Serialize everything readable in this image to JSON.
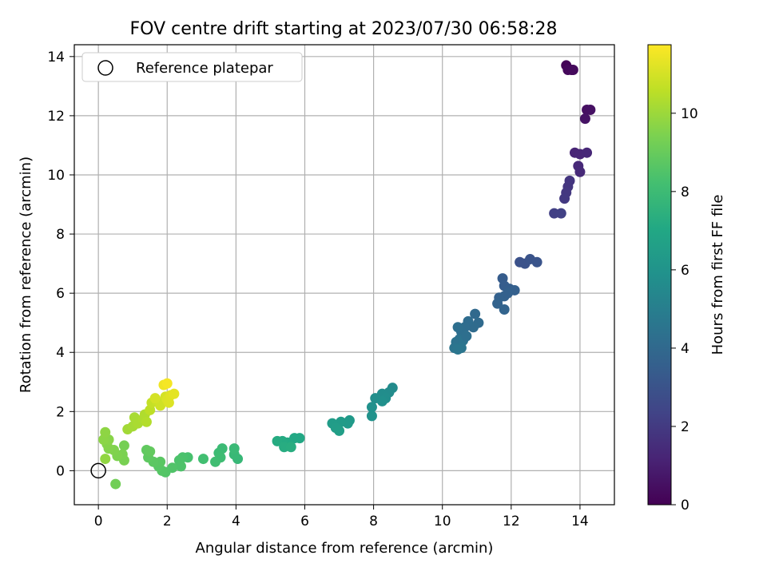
{
  "chart_data": {
    "type": "scatter",
    "title": "FOV centre drift starting at 2023/07/30 06:58:28",
    "xlabel": "Angular distance from reference (arcmin)",
    "ylabel": "Rotation from reference (arcmin)",
    "xlim": [
      -0.7,
      15.0
    ],
    "ylim": [
      -1.15,
      14.4
    ],
    "xticks": [
      0,
      2,
      4,
      6,
      8,
      10,
      12,
      14
    ],
    "yticks": [
      0,
      2,
      4,
      6,
      8,
      10,
      12,
      14
    ],
    "grid": true,
    "legend": {
      "position": "top-left",
      "entries": [
        "Reference platepar"
      ]
    },
    "reference_point": {
      "x": 0,
      "y": 0
    },
    "colorbar": {
      "label": "Hours from first FF file",
      "colormap": "viridis",
      "range": [
        0,
        11.75
      ],
      "ticks": [
        0,
        2,
        4,
        6,
        8,
        10
      ]
    },
    "points": [
      {
        "x": 13.6,
        "y": 13.7,
        "c": 0.1
      },
      {
        "x": 13.75,
        "y": 13.55,
        "c": 0.2
      },
      {
        "x": 13.65,
        "y": 13.55,
        "c": 0.25
      },
      {
        "x": 13.8,
        "y": 13.55,
        "c": 0.3
      },
      {
        "x": 14.2,
        "y": 12.2,
        "c": 0.5
      },
      {
        "x": 14.3,
        "y": 12.2,
        "c": 0.55
      },
      {
        "x": 14.15,
        "y": 11.9,
        "c": 0.6
      },
      {
        "x": 13.85,
        "y": 10.75,
        "c": 1.2
      },
      {
        "x": 14.0,
        "y": 10.7,
        "c": 1.25
      },
      {
        "x": 14.2,
        "y": 10.75,
        "c": 1.3
      },
      {
        "x": 13.95,
        "y": 10.3,
        "c": 1.35
      },
      {
        "x": 14.0,
        "y": 10.1,
        "c": 1.4
      },
      {
        "x": 13.7,
        "y": 9.8,
        "c": 1.8
      },
      {
        "x": 13.65,
        "y": 9.6,
        "c": 1.85
      },
      {
        "x": 13.6,
        "y": 9.4,
        "c": 1.9
      },
      {
        "x": 13.55,
        "y": 9.2,
        "c": 1.95
      },
      {
        "x": 13.25,
        "y": 8.7,
        "c": 2.2
      },
      {
        "x": 13.45,
        "y": 8.7,
        "c": 2.25
      },
      {
        "x": 12.25,
        "y": 7.05,
        "c": 2.9
      },
      {
        "x": 12.4,
        "y": 7.0,
        "c": 2.95
      },
      {
        "x": 12.55,
        "y": 7.15,
        "c": 3.0
      },
      {
        "x": 12.75,
        "y": 7.05,
        "c": 3.05
      },
      {
        "x": 11.75,
        "y": 6.5,
        "c": 3.4
      },
      {
        "x": 11.8,
        "y": 6.25,
        "c": 3.45
      },
      {
        "x": 11.95,
        "y": 6.15,
        "c": 3.5
      },
      {
        "x": 12.1,
        "y": 6.1,
        "c": 3.55
      },
      {
        "x": 11.65,
        "y": 5.85,
        "c": 3.6
      },
      {
        "x": 11.8,
        "y": 5.9,
        "c": 3.65
      },
      {
        "x": 11.6,
        "y": 5.65,
        "c": 3.7
      },
      {
        "x": 11.8,
        "y": 5.45,
        "c": 3.75
      },
      {
        "x": 11.9,
        "y": 6.0,
        "c": 3.62
      },
      {
        "x": 10.95,
        "y": 5.3,
        "c": 4.0
      },
      {
        "x": 11.05,
        "y": 5.0,
        "c": 4.05
      },
      {
        "x": 10.9,
        "y": 4.85,
        "c": 4.1
      },
      {
        "x": 10.75,
        "y": 5.05,
        "c": 4.15
      },
      {
        "x": 10.65,
        "y": 4.85,
        "c": 4.2
      },
      {
        "x": 10.55,
        "y": 4.7,
        "c": 4.25
      },
      {
        "x": 10.45,
        "y": 4.85,
        "c": 4.3
      },
      {
        "x": 10.5,
        "y": 4.45,
        "c": 4.35
      },
      {
        "x": 10.4,
        "y": 4.35,
        "c": 4.4
      },
      {
        "x": 10.6,
        "y": 4.4,
        "c": 4.45
      },
      {
        "x": 10.35,
        "y": 4.15,
        "c": 4.5
      },
      {
        "x": 10.55,
        "y": 4.15,
        "c": 4.55
      },
      {
        "x": 10.45,
        "y": 4.1,
        "c": 4.6
      },
      {
        "x": 10.7,
        "y": 4.55,
        "c": 4.3
      },
      {
        "x": 8.55,
        "y": 2.8,
        "c": 5.6
      },
      {
        "x": 8.45,
        "y": 2.65,
        "c": 5.65
      },
      {
        "x": 8.25,
        "y": 2.6,
        "c": 5.7
      },
      {
        "x": 8.35,
        "y": 2.45,
        "c": 5.75
      },
      {
        "x": 8.05,
        "y": 2.45,
        "c": 5.8
      },
      {
        "x": 8.25,
        "y": 2.35,
        "c": 5.85
      },
      {
        "x": 7.95,
        "y": 2.15,
        "c": 5.9
      },
      {
        "x": 7.95,
        "y": 1.85,
        "c": 5.95
      },
      {
        "x": 7.3,
        "y": 1.7,
        "c": 6.3
      },
      {
        "x": 7.25,
        "y": 1.6,
        "c": 6.35
      },
      {
        "x": 7.05,
        "y": 1.65,
        "c": 6.4
      },
      {
        "x": 6.8,
        "y": 1.6,
        "c": 6.45
      },
      {
        "x": 6.9,
        "y": 1.45,
        "c": 6.5
      },
      {
        "x": 7.0,
        "y": 1.35,
        "c": 6.55
      },
      {
        "x": 5.85,
        "y": 1.1,
        "c": 7.0
      },
      {
        "x": 5.7,
        "y": 1.1,
        "c": 7.05
      },
      {
        "x": 5.5,
        "y": 0.95,
        "c": 7.1
      },
      {
        "x": 5.35,
        "y": 1.0,
        "c": 7.15
      },
      {
        "x": 5.2,
        "y": 1.0,
        "c": 7.2
      },
      {
        "x": 5.4,
        "y": 0.8,
        "c": 7.25
      },
      {
        "x": 5.6,
        "y": 0.8,
        "c": 7.3
      },
      {
        "x": 4.05,
        "y": 0.4,
        "c": 7.8
      },
      {
        "x": 3.95,
        "y": 0.55,
        "c": 7.85
      },
      {
        "x": 3.95,
        "y": 0.75,
        "c": 7.9
      },
      {
        "x": 3.6,
        "y": 0.75,
        "c": 7.95
      },
      {
        "x": 3.5,
        "y": 0.6,
        "c": 8.0
      },
      {
        "x": 3.55,
        "y": 0.45,
        "c": 8.05
      },
      {
        "x": 3.4,
        "y": 0.3,
        "c": 8.1
      },
      {
        "x": 3.05,
        "y": 0.4,
        "c": 8.15
      },
      {
        "x": 2.6,
        "y": 0.45,
        "c": 8.3
      },
      {
        "x": 2.45,
        "y": 0.45,
        "c": 8.35
      },
      {
        "x": 2.35,
        "y": 0.35,
        "c": 8.4
      },
      {
        "x": 2.4,
        "y": 0.15,
        "c": 8.45
      },
      {
        "x": 2.15,
        "y": 0.1,
        "c": 8.5
      },
      {
        "x": 1.95,
        "y": -0.05,
        "c": 8.55
      },
      {
        "x": 1.85,
        "y": 0.0,
        "c": 8.6
      },
      {
        "x": 1.75,
        "y": 0.15,
        "c": 8.65
      },
      {
        "x": 1.8,
        "y": 0.3,
        "c": 8.7
      },
      {
        "x": 1.6,
        "y": 0.3,
        "c": 8.75
      },
      {
        "x": 1.45,
        "y": 0.45,
        "c": 8.8
      },
      {
        "x": 1.4,
        "y": 0.7,
        "c": 8.85
      },
      {
        "x": 1.5,
        "y": 0.65,
        "c": 8.9
      },
      {
        "x": 0.5,
        "y": -0.45,
        "c": 9.2
      },
      {
        "x": 0.75,
        "y": 0.85,
        "c": 9.3
      },
      {
        "x": 0.75,
        "y": 0.35,
        "c": 9.35
      },
      {
        "x": 0.7,
        "y": 0.55,
        "c": 9.4
      },
      {
        "x": 0.55,
        "y": 0.5,
        "c": 9.45
      },
      {
        "x": 0.45,
        "y": 0.7,
        "c": 9.5
      },
      {
        "x": 0.3,
        "y": 0.75,
        "c": 9.55
      },
      {
        "x": 0.25,
        "y": 0.9,
        "c": 9.6
      },
      {
        "x": 0.3,
        "y": 1.05,
        "c": 9.65
      },
      {
        "x": 0.15,
        "y": 1.05,
        "c": 9.7
      },
      {
        "x": 0.2,
        "y": 1.3,
        "c": 9.75
      },
      {
        "x": 0.2,
        "y": 0.4,
        "c": 9.8
      },
      {
        "x": 0.85,
        "y": 1.4,
        "c": 10.1
      },
      {
        "x": 1.0,
        "y": 1.5,
        "c": 10.15
      },
      {
        "x": 1.05,
        "y": 1.8,
        "c": 10.2
      },
      {
        "x": 1.15,
        "y": 1.6,
        "c": 10.25
      },
      {
        "x": 1.3,
        "y": 1.75,
        "c": 10.3
      },
      {
        "x": 1.35,
        "y": 1.9,
        "c": 10.35
      },
      {
        "x": 1.4,
        "y": 1.65,
        "c": 10.4
      },
      {
        "x": 1.5,
        "y": 2.05,
        "c": 10.6
      },
      {
        "x": 1.55,
        "y": 2.3,
        "c": 10.7
      },
      {
        "x": 1.7,
        "y": 2.35,
        "c": 10.8
      },
      {
        "x": 1.8,
        "y": 2.2,
        "c": 10.9
      },
      {
        "x": 1.95,
        "y": 2.5,
        "c": 11.0
      },
      {
        "x": 2.0,
        "y": 2.4,
        "c": 11.1
      },
      {
        "x": 2.05,
        "y": 2.3,
        "c": 11.15
      },
      {
        "x": 2.1,
        "y": 2.55,
        "c": 11.2
      },
      {
        "x": 2.2,
        "y": 2.6,
        "c": 11.3
      },
      {
        "x": 1.9,
        "y": 2.9,
        "c": 11.5
      },
      {
        "x": 2.0,
        "y": 2.95,
        "c": 11.6
      },
      {
        "x": 1.65,
        "y": 2.45,
        "c": 11.0
      }
    ]
  }
}
